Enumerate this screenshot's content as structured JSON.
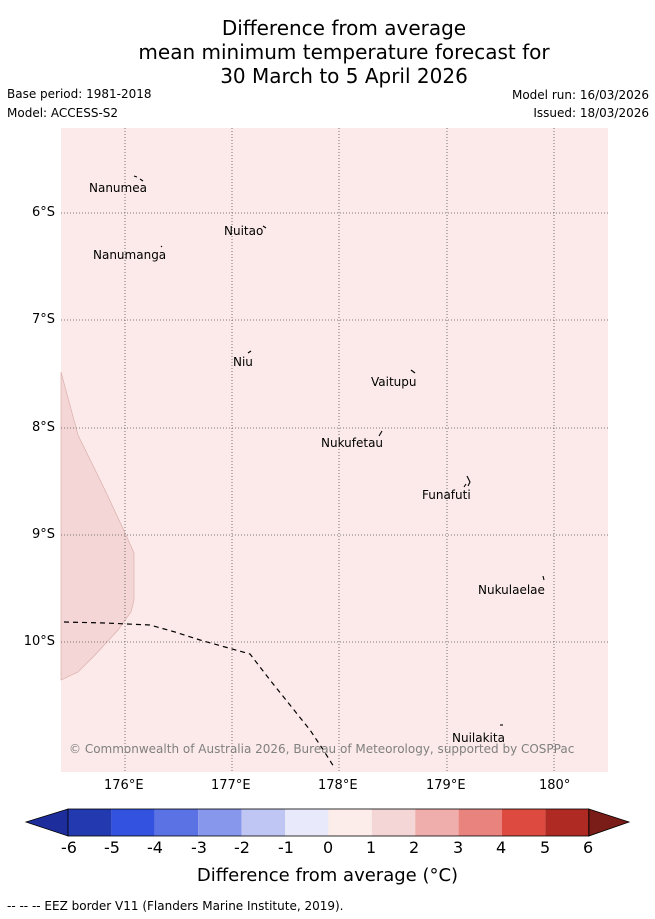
{
  "title": {
    "line1": "Difference from average",
    "line2": "mean minimum temperature forecast for",
    "line3": "30 March to 5 April 2026"
  },
  "meta": {
    "base_period": "Base period: 1981-2018",
    "model": "Model: ACCESS-S2",
    "model_run": "Model run: 16/03/2026",
    "issued": "Issued: 18/03/2026"
  },
  "map": {
    "copyright": "© Commonwealth of Australia 2026, Bureau of Meteorology, supported by COSPPac",
    "lat_labels": [
      "6°S",
      "7°S",
      "8°S",
      "9°S",
      "10°S"
    ],
    "lon_labels": [
      "176°E",
      "177°E",
      "178°E",
      "179°E",
      "180°"
    ],
    "places": [
      {
        "name": "Nanumea"
      },
      {
        "name": "Nuitao"
      },
      {
        "name": "Nanumanga"
      },
      {
        "name": "Niu"
      },
      {
        "name": "Vaitupu"
      },
      {
        "name": "Nukufetau"
      },
      {
        "name": "Funafuti"
      },
      {
        "name": "Nukulaelae"
      },
      {
        "name": "Nuilakita"
      }
    ],
    "colors": {
      "background_anomaly": "#fbeae9",
      "warmer_patch": "#f3d6d5",
      "grid": "#555555"
    }
  },
  "colorbar": {
    "ticks": [
      "-6",
      "-5",
      "-4",
      "-3",
      "-2",
      "-1",
      "0",
      "1",
      "2",
      "3",
      "4",
      "5",
      "6"
    ],
    "colors": [
      "#1d2e9c",
      "#2339b0",
      "#3452e0",
      "#5b72e4",
      "#8797ec",
      "#c0c6f4",
      "#e8eafb",
      "#fcecea",
      "#f3d6d5",
      "#efaeab",
      "#e9837e",
      "#dd4a40",
      "#b02a24",
      "#7a1c18"
    ],
    "title": "Difference from average (°C)"
  },
  "footer": "-- -- -- EEZ border V11 (Flanders Marine Institute, 2019)."
}
